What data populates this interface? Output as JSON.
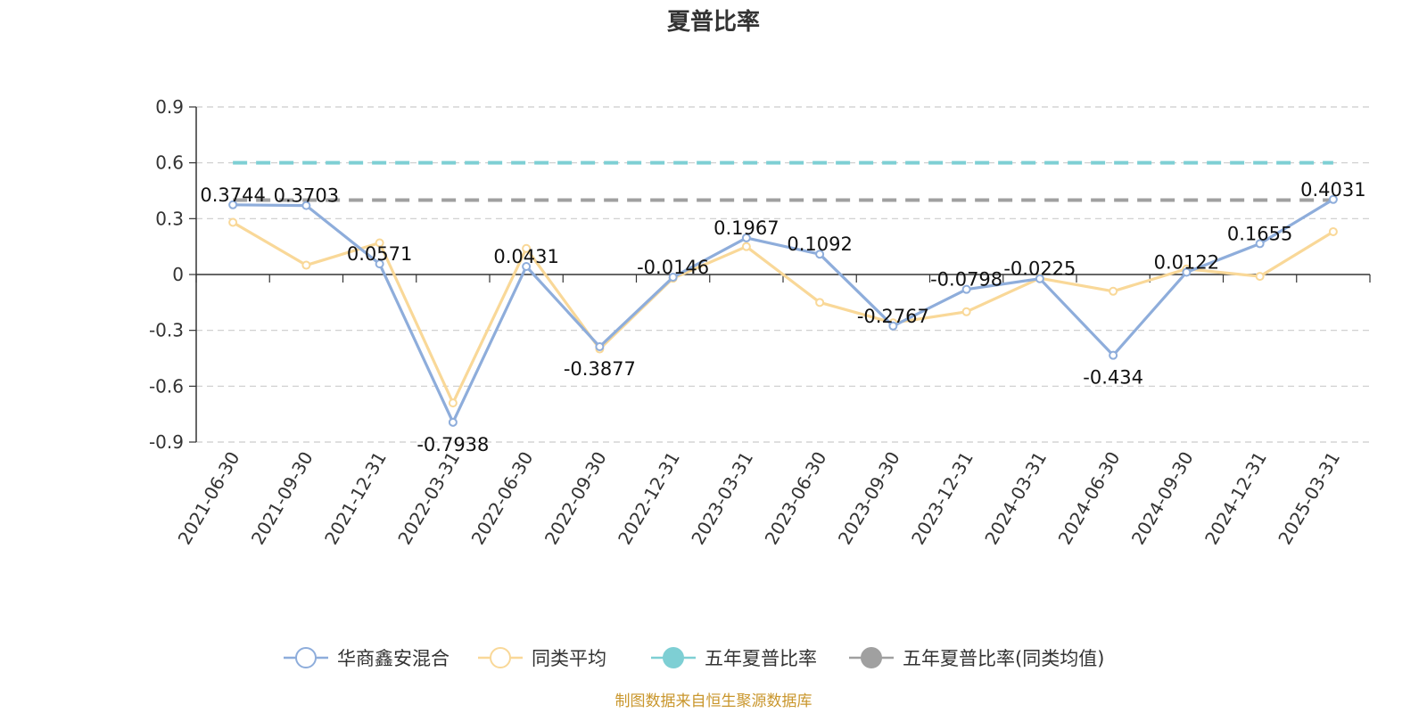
{
  "chart_data": {
    "type": "line",
    "title": "夏普比率",
    "categories": [
      "2021-06-30",
      "2021-09-30",
      "2021-12-31",
      "2022-03-31",
      "2022-06-30",
      "2022-09-30",
      "2022-12-31",
      "2023-03-31",
      "2023-06-30",
      "2023-09-30",
      "2023-12-31",
      "2024-03-31",
      "2024-06-30",
      "2024-09-30",
      "2024-12-31",
      "2025-03-31"
    ],
    "series": [
      {
        "name": "华商鑫安混合",
        "color": "#8eaddb",
        "values": [
          0.3744,
          0.3703,
          0.0571,
          -0.7938,
          0.0431,
          -0.3877,
          -0.0146,
          0.1967,
          0.1092,
          -0.2767,
          -0.0798,
          -0.0225,
          -0.434,
          0.0122,
          0.1655,
          0.4031
        ],
        "labels": [
          "0.3744",
          "0.3703",
          "0.0571",
          "-0.7938",
          "0.0431",
          "-0.3877",
          "-0.0146",
          "0.1967",
          "0.1092",
          "-0.2767",
          "-0.0798",
          "-0.0225",
          "-0.434",
          "0.0122",
          "0.1655",
          "0.4031"
        ]
      },
      {
        "name": "同类平均",
        "color": "#f9d898",
        "values": [
          0.28,
          0.05,
          0.17,
          -0.69,
          0.14,
          -0.4,
          -0.02,
          0.15,
          -0.15,
          -0.26,
          -0.2,
          -0.02,
          -0.09,
          0.03,
          -0.01,
          0.23
        ]
      }
    ],
    "reference_lines": [
      {
        "name": "五年夏普比率",
        "color": "#7ecfd4",
        "value": 0.6
      },
      {
        "name": "五年夏普比率(同类均值)",
        "color": "#a0a0a0",
        "value": 0.4
      }
    ],
    "y_ticks": [
      "0.9",
      "0.6",
      "0.3",
      "0",
      "-0.3",
      "-0.6",
      "-0.9"
    ],
    "ylim": [
      -0.9,
      0.9
    ],
    "grid": true,
    "legend_position": "bottom"
  },
  "footer": "制图数据来自恒生聚源数据库"
}
